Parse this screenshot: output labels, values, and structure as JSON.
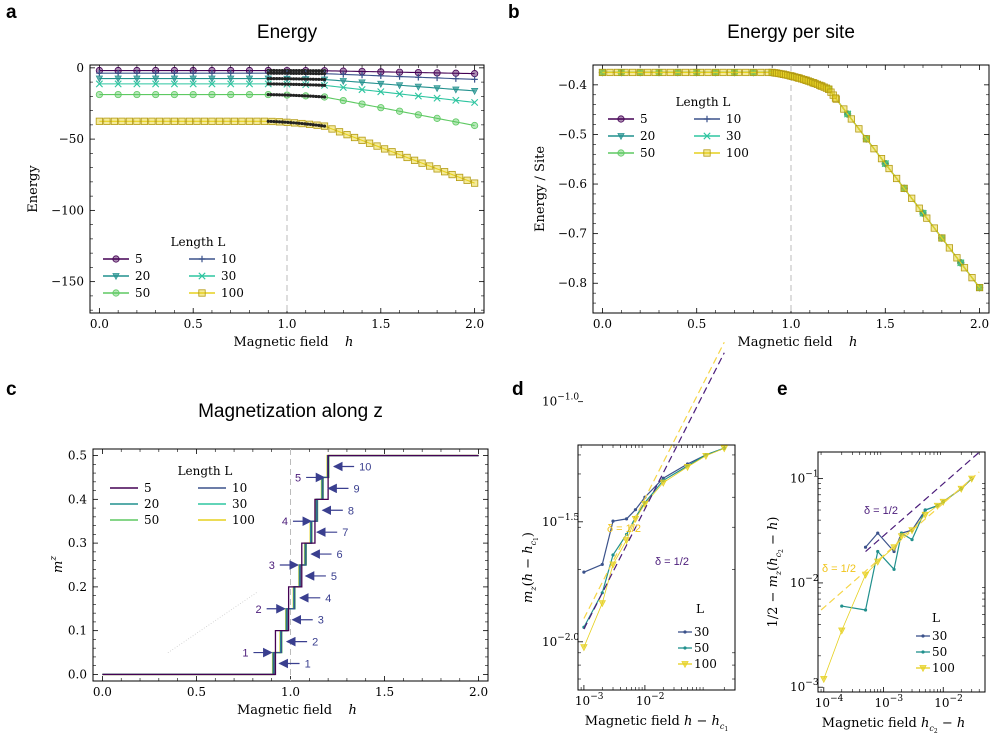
{
  "colors": {
    "L5": "#440154",
    "L10": "#3b528b",
    "L20": "#21908d",
    "L30": "#2ec5a0",
    "L50": "#5ec962",
    "L100": "#e6d01e",
    "fit_purple": "#4b1c7a",
    "fit_yellow": "#f5d547",
    "arrow": "#3a3f8f"
  },
  "chart_data": [
    {
      "panel": "a",
      "type": "line",
      "title": "Energy",
      "xlabel": "Magnetic field h",
      "ylabel": "Energy",
      "xlim": [
        -0.05,
        2.05
      ],
      "ylim": [
        -172,
        2
      ],
      "xticks": [
        0.0,
        0.5,
        1.0,
        1.5,
        2.0
      ],
      "xticklabels": [
        "0.0",
        "0.5",
        "1.0",
        "1.5",
        "2.0"
      ],
      "yticks": [
        0,
        -50,
        -100,
        -150
      ],
      "yticklabels": [
        "0",
        "−50",
        "−100",
        "−150"
      ],
      "vline": 1.0,
      "legend": {
        "title": "Length L",
        "position": "lower-left",
        "entries": [
          "5",
          "10",
          "20",
          "30",
          "50",
          "100"
        ]
      },
      "series": [
        {
          "name": "5",
          "L": 5,
          "marker": "circle",
          "color_key": "L5"
        },
        {
          "name": "10",
          "L": 10,
          "marker": "plus",
          "color_key": "L10"
        },
        {
          "name": "20",
          "L": 20,
          "marker": "triangle",
          "color_key": "L20"
        },
        {
          "name": "30",
          "L": 30,
          "marker": "x",
          "color_key": "L30"
        },
        {
          "name": "50",
          "L": 50,
          "marker": "circle",
          "color_key": "L50"
        },
        {
          "name": "100",
          "L": 100,
          "marker": "square",
          "color_key": "L100"
        }
      ],
      "energy_model": {
        "e0": -0.375,
        "hc1": 0.9,
        "hc2": 1.2,
        "slope": -0.5
      }
    },
    {
      "panel": "b",
      "type": "line",
      "title": "Energy per site",
      "xlabel": "Magnetic field h",
      "ylabel": "Energy / Site",
      "xlim": [
        -0.05,
        2.05
      ],
      "ylim": [
        -0.86,
        -0.36
      ],
      "xticks": [
        0.0,
        0.5,
        1.0,
        1.5,
        2.0
      ],
      "xticklabels": [
        "0.0",
        "0.5",
        "1.0",
        "1.5",
        "2.0"
      ],
      "yticks": [
        -0.4,
        -0.5,
        -0.6,
        -0.7,
        -0.8
      ],
      "yticklabels": [
        "−0.4",
        "−0.5",
        "−0.6",
        "−0.7",
        "−0.8"
      ],
      "vline": 1.0,
      "legend": {
        "title": "Length L",
        "position": "upper-left",
        "entries": [
          "5",
          "10",
          "20",
          "30",
          "50",
          "100"
        ]
      },
      "energy_model": {
        "e0": -0.375,
        "hc1": 0.9,
        "hc2": 1.2,
        "slope": -0.5
      }
    },
    {
      "panel": "c",
      "type": "line",
      "title": "Magnetization along z",
      "xlabel": "Magnetic field h",
      "ylabel": "m^z",
      "xlim": [
        -0.05,
        2.05
      ],
      "ylim": [
        -0.015,
        0.515
      ],
      "xticks": [
        0.0,
        0.5,
        1.0,
        1.5,
        2.0
      ],
      "xticklabels": [
        "0.0",
        "0.5",
        "1.0",
        "1.5",
        "2.0"
      ],
      "yticks": [
        0.0,
        0.1,
        0.2,
        0.3,
        0.4,
        0.5
      ],
      "yticklabels": [
        "0.0",
        "0.1",
        "0.2",
        "0.3",
        "0.4",
        "0.5"
      ],
      "vline": 1.0,
      "legend": {
        "title": "Length L",
        "position": "upper-left",
        "entries": [
          "5",
          "10",
          "20",
          "30",
          "50",
          "100"
        ]
      },
      "steps_L10": [
        [
          0.91,
          0.05
        ],
        [
          0.95,
          0.1
        ],
        [
          0.98,
          0.15
        ],
        [
          1.02,
          0.2
        ],
        [
          1.05,
          0.25
        ],
        [
          1.08,
          0.3
        ],
        [
          1.11,
          0.35
        ],
        [
          1.14,
          0.4
        ],
        [
          1.17,
          0.45
        ],
        [
          1.2,
          0.5
        ]
      ],
      "steps_L5": [
        [
          0.92,
          0.1
        ],
        [
          0.99,
          0.2
        ],
        [
          1.06,
          0.3
        ],
        [
          1.13,
          0.4
        ],
        [
          1.2,
          0.5
        ]
      ],
      "annotations_left": [
        "1",
        "2",
        "3",
        "4",
        "5"
      ],
      "annotations_right": [
        "1",
        "2",
        "3",
        "4",
        "5",
        "6",
        "7",
        "8",
        "9",
        "10"
      ]
    },
    {
      "panel": "d",
      "type": "line",
      "xlabel": "Magnetic field h − h_c1",
      "ylabel": "m_z(h − h_c1)",
      "xscale": "log",
      "yscale": "log",
      "xlim": [
        0.0008,
        0.3
      ],
      "ylim": [
        0.0063,
        0.066
      ],
      "xticks": [
        0.001,
        0.01
      ],
      "xticklabels": [
        "10−3",
        "10−2"
      ],
      "yticks": [
        0.1,
        0.0316,
        0.01
      ],
      "yticklabels": [
        "10−1.0",
        "10−1.5",
        "10−2.0"
      ],
      "legend": {
        "title": "L",
        "position": "lower-right",
        "entries": [
          "30",
          "50",
          "100"
        ]
      },
      "fit_labels": [
        "δ = 1/2",
        "δ = 1/2"
      ],
      "series": [
        {
          "name": "30",
          "color_key": "L10",
          "x": [
            0.001,
            0.002,
            0.003,
            0.005,
            0.007,
            0.01,
            0.02,
            0.05,
            0.1,
            0.2
          ],
          "y": [
            0.0195,
            0.021,
            0.0318,
            0.0325,
            0.0355,
            0.04,
            0.048,
            0.055,
            0.06,
            0.064
          ]
        },
        {
          "name": "50",
          "color_key": "L20",
          "x": [
            0.001,
            0.002,
            0.003,
            0.005,
            0.007,
            0.01,
            0.02,
            0.05,
            0.1,
            0.2
          ],
          "y": [
            0.0115,
            0.016,
            0.023,
            0.028,
            0.033,
            0.038,
            0.047,
            0.054,
            0.06,
            0.064
          ]
        },
        {
          "name": "100",
          "color_key": "L100",
          "x": [
            0.001,
            0.002,
            0.003,
            0.005,
            0.007,
            0.01,
            0.02,
            0.05,
            0.1,
            0.2
          ],
          "y": [
            0.0095,
            0.0145,
            0.021,
            0.0265,
            0.0325,
            0.0375,
            0.046,
            0.0535,
            0.0595,
            0.064
          ]
        }
      ]
    },
    {
      "panel": "e",
      "type": "line",
      "xlabel": "Magnetic field h_c2 − h",
      "ylabel": "1/2 − m_z(h_c2 − h)",
      "xscale": "log",
      "yscale": "log",
      "xlim": [
        8e-05,
        0.05
      ],
      "ylim": [
        0.0009,
        0.18
      ],
      "xticks": [
        0.0001,
        0.001,
        0.01
      ],
      "xticklabels": [
        "10−4",
        "10−3",
        "10−2"
      ],
      "yticks": [
        0.1,
        0.01,
        0.001
      ],
      "yticklabels": [
        "10−1",
        "10−2",
        "10−3"
      ],
      "legend": {
        "title": "L",
        "position": "lower-right",
        "entries": [
          "30",
          "50",
          "100"
        ]
      },
      "fit_labels": [
        "δ = 1/2",
        "δ = 1/2"
      ],
      "series": [
        {
          "name": "30",
          "color_key": "L10",
          "x": [
            0.0005,
            0.0008,
            0.0015,
            0.002,
            0.003,
            0.005,
            0.008,
            0.01,
            0.02,
            0.03
          ],
          "y": [
            0.022,
            0.03,
            0.02,
            0.03,
            0.032,
            0.05,
            0.055,
            0.06,
            0.08,
            0.1
          ]
        },
        {
          "name": "50",
          "color_key": "L20",
          "x": [
            0.0002,
            0.0005,
            0.0008,
            0.0015,
            0.002,
            0.003,
            0.005,
            0.008,
            0.01,
            0.02,
            0.03
          ],
          "y": [
            0.006,
            0.0055,
            0.02,
            0.0135,
            0.03,
            0.026,
            0.05,
            0.055,
            0.06,
            0.08,
            0.1
          ]
        },
        {
          "name": "100",
          "color_key": "L100",
          "x": [
            0.0001,
            0.0002,
            0.0005,
            0.0008,
            0.0015,
            0.002,
            0.003,
            0.005,
            0.008,
            0.01,
            0.02,
            0.03
          ],
          "y": [
            0.0012,
            0.0035,
            0.012,
            0.016,
            0.022,
            0.028,
            0.032,
            0.045,
            0.055,
            0.06,
            0.08,
            0.1
          ]
        }
      ]
    }
  ],
  "labels": {
    "a": "a",
    "b": "b",
    "c": "c",
    "d": "d",
    "e": "e"
  }
}
